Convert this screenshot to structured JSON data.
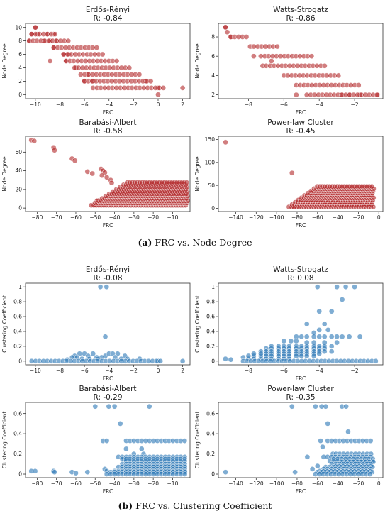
{
  "captions": {
    "a_label": "(a)",
    "a_text": "FRC vs. Node Degree",
    "b_label": "(b)",
    "b_text": "FRC vs. Clustering Coefficient"
  },
  "colors": {
    "red": "#b2282a",
    "blue": "#2a77b6"
  },
  "chart_data": [
    {
      "type": "scatter",
      "panel": "a",
      "title": "Erdős-Rényi",
      "subtitle": "R: -0.84",
      "xlabel": "FRC",
      "ylabel": "Node Degree",
      "color": "red",
      "xlim": [
        -10.8,
        2.6
      ],
      "ylim": [
        -0.6,
        10.6
      ],
      "xticks": [
        -10,
        -8,
        -6,
        -4,
        -2,
        0,
        2
      ],
      "yticks": [
        0,
        2,
        4,
        6,
        8,
        10
      ],
      "points": [
        [
          -10,
          10
        ],
        [
          -10.3,
          9
        ],
        [
          -9.8,
          9
        ],
        [
          -10.5,
          8
        ],
        [
          -9,
          9
        ],
        [
          -8.5,
          9
        ],
        [
          -9.3,
          8
        ],
        [
          -8.8,
          8
        ],
        [
          -8.3,
          8
        ],
        [
          -8.5,
          7
        ],
        [
          -7.7,
          6
        ],
        [
          -7.3,
          6
        ],
        [
          -8.8,
          5
        ],
        [
          -5.7,
          3
        ],
        [
          -6,
          2
        ],
        [
          -5.3,
          2
        ],
        [
          -7.5,
          5
        ],
        [
          -6.7,
          4
        ],
        [
          -1,
          2
        ],
        [
          0,
          1
        ],
        [
          0,
          0
        ],
        [
          2,
          1
        ]
      ],
      "rows": [
        [
          10,
          -10,
          -10
        ],
        [
          9,
          -10.3,
          -8.3
        ],
        [
          8,
          -10.5,
          -7.3
        ],
        [
          7,
          -8.5,
          -5
        ],
        [
          6,
          -7.7,
          -4.3
        ],
        [
          5,
          -7.5,
          -3.3
        ],
        [
          4,
          -6.8,
          -2.3
        ],
        [
          3,
          -6.3,
          -1.3
        ],
        [
          2,
          -6,
          -0.3
        ],
        [
          1,
          -5.3,
          0.7
        ]
      ]
    },
    {
      "type": "scatter",
      "panel": "a",
      "title": "Watts-Strogatz",
      "subtitle": "R: -0.86",
      "xlabel": "FRC",
      "ylabel": "Node Degree",
      "color": "red",
      "xlim": [
        -9.7,
        -0.4
      ],
      "ylim": [
        1.6,
        9.4
      ],
      "xticks": [
        -8,
        -6,
        -4,
        -2
      ],
      "yticks": [
        2,
        4,
        6,
        8
      ],
      "points": [
        [
          -9.3,
          9
        ],
        [
          -9,
          8
        ],
        [
          -7.7,
          6
        ],
        [
          -7.2,
          5
        ],
        [
          -5.3,
          2
        ],
        [
          -2.7,
          2
        ],
        [
          -2.3,
          2
        ],
        [
          -1.7,
          2
        ],
        [
          -0.7,
          2
        ],
        [
          -9.2,
          8.5
        ],
        [
          -7.9,
          7
        ],
        [
          -6.7,
          5.5
        ]
      ],
      "rows": [
        [
          9,
          -9.3,
          -9.3
        ],
        [
          8,
          -9,
          -8
        ],
        [
          7,
          -7.7,
          -6.3
        ],
        [
          6,
          -7.3,
          -4.3
        ],
        [
          5,
          -7,
          -3.5
        ],
        [
          4,
          -6,
          -2.7
        ],
        [
          3,
          -5.3,
          -1.7
        ],
        [
          2,
          -4.7,
          -0.7
        ]
      ]
    },
    {
      "type": "scatter",
      "panel": "a",
      "title": "Barabási-Albert",
      "subtitle": "R: -0.58",
      "xlabel": "FRC",
      "ylabel": "Node Degree",
      "color": "red",
      "xlim": [
        -86,
        -1
      ],
      "ylim": [
        -3.7,
        77
      ],
      "xticks": [
        -80,
        -70,
        -60,
        -50,
        -40,
        -30,
        -20,
        -10
      ],
      "yticks": [
        0,
        20,
        40,
        60
      ],
      "points": [
        [
          -83,
          73
        ],
        [
          -81.5,
          72
        ],
        [
          -71.5,
          65
        ],
        [
          -71,
          62
        ],
        [
          -62,
          53
        ],
        [
          -60.5,
          51
        ],
        [
          -54,
          39
        ],
        [
          -51.5,
          37
        ],
        [
          -47,
          42
        ],
        [
          -46,
          40
        ],
        [
          -45,
          38
        ],
        [
          -46.5,
          35
        ],
        [
          -44,
          33
        ],
        [
          -42,
          30
        ],
        [
          -41.5,
          27
        ],
        [
          -49,
          8
        ],
        [
          -50,
          4
        ],
        [
          -40,
          16
        ]
      ],
      "triangle": [
        [
          -52,
          3
        ],
        [
          -2,
          3
        ],
        [
          -33,
          28
        ]
      ]
    },
    {
      "type": "scatter",
      "panel": "a",
      "title": "Power-law Cluster",
      "subtitle": "R: -0.45",
      "xlabel": "FRC",
      "ylabel": "Node Degree",
      "color": "red",
      "xlim": [
        -157,
        4
      ],
      "ylim": [
        -7,
        157
      ],
      "xticks": [
        -140,
        -120,
        -100,
        -80,
        -60,
        -40,
        -20,
        0
      ],
      "yticks": [
        0,
        50,
        100,
        150
      ],
      "points": [
        [
          -150,
          144
        ],
        [
          -85,
          77
        ],
        [
          -83,
          4
        ],
        [
          -68,
          25
        ],
        [
          -65,
          20
        ]
      ],
      "triangle": [
        [
          -88,
          3
        ],
        [
          -5,
          3
        ],
        [
          -60,
          48
        ]
      ]
    },
    {
      "type": "scatter",
      "panel": "b",
      "title": "Erdős-Rényi",
      "subtitle": "R: -0.08",
      "xlabel": "FRC",
      "ylabel": "Clustering Coefficient",
      "color": "blue",
      "xlim": [
        -10.8,
        2.6
      ],
      "ylim": [
        -0.05,
        1.05
      ],
      "xticks": [
        -10,
        -8,
        -6,
        -4,
        -2,
        0,
        2
      ],
      "yticks": [
        0,
        0.2,
        0.4,
        0.6,
        0.8,
        1.0
      ],
      "points": [
        [
          -4.7,
          1
        ],
        [
          -4.2,
          1
        ],
        [
          -4.3,
          0.33
        ],
        [
          -6.4,
          0.1
        ],
        [
          -6,
          0.1
        ],
        [
          -5.7,
          0.07
        ],
        [
          -5.3,
          0.1
        ],
        [
          -6.8,
          0.07
        ],
        [
          -4.3,
          0.07
        ],
        [
          -4,
          0.1
        ],
        [
          -3.7,
          0.1
        ],
        [
          -3.3,
          0.1
        ],
        [
          -2.7,
          0.07
        ],
        [
          -7,
          0.05
        ],
        [
          -6.6,
          0.05
        ],
        [
          -5,
          0.05
        ],
        [
          -4.6,
          0.05
        ],
        [
          -3.5,
          0.05
        ],
        [
          -6.2,
          0.03
        ],
        [
          -5.6,
          0.03
        ],
        [
          -4.9,
          0.03
        ],
        [
          -3,
          0.03
        ],
        [
          -2.5,
          0.03
        ],
        [
          -7.4,
          0.02
        ],
        [
          -1.5,
          0.03
        ],
        [
          0,
          0
        ],
        [
          2,
          0
        ]
      ],
      "rows": [
        [
          0,
          -10.3,
          0.5
        ]
      ]
    },
    {
      "type": "scatter",
      "panel": "b",
      "title": "Watts-Strogatz",
      "subtitle": "R: 0.08",
      "xlabel": "FRC",
      "ylabel": "Clustering Coefficient",
      "color": "blue",
      "xlim": [
        -9.7,
        -0.4
      ],
      "ylim": [
        -0.05,
        1.05
      ],
      "xticks": [
        -8,
        -6,
        -4,
        -2
      ],
      "yticks": [
        0,
        0.2,
        0.4,
        0.6,
        0.8,
        1.0
      ],
      "points": [
        [
          -4.1,
          1
        ],
        [
          -3,
          1
        ],
        [
          -2.5,
          1
        ],
        [
          -2,
          1
        ],
        [
          -2.7,
          0.83
        ],
        [
          -4,
          0.67
        ],
        [
          -3.3,
          0.67
        ],
        [
          -4.7,
          0.5
        ],
        [
          -3.7,
          0.5
        ],
        [
          -9.3,
          0.03
        ],
        [
          -9,
          0.02
        ],
        [
          -8.3,
          0.05
        ],
        [
          -8,
          0.03
        ],
        [
          -7.7,
          0.07
        ],
        [
          -7.3,
          0.07
        ],
        [
          -4,
          0.42
        ],
        [
          -3.5,
          0.42
        ],
        [
          -4.3,
          0.38
        ],
        [
          -5.3,
          0.33
        ],
        [
          -5,
          0.33
        ],
        [
          -4.7,
          0.33
        ],
        [
          -4.3,
          0.33
        ],
        [
          -4,
          0.33
        ],
        [
          -3.7,
          0.33
        ],
        [
          -3.3,
          0.33
        ],
        [
          -3,
          0.33
        ],
        [
          -2.7,
          0.33
        ],
        [
          -2.3,
          0.33
        ],
        [
          -1.7,
          0.33
        ],
        [
          -6,
          0.27
        ],
        [
          -5.6,
          0.27
        ],
        [
          -5.3,
          0.27
        ],
        [
          -4.7,
          0.25
        ],
        [
          -4.3,
          0.25
        ],
        [
          -3.7,
          0.25
        ],
        [
          -3,
          0.25
        ],
        [
          -6.7,
          0.2
        ],
        [
          -6.3,
          0.2
        ],
        [
          -6,
          0.2
        ],
        [
          -5.7,
          0.2
        ],
        [
          -5.3,
          0.2
        ],
        [
          -5,
          0.2
        ],
        [
          -4.7,
          0.2
        ],
        [
          -4.3,
          0.2
        ],
        [
          -4,
          0.2
        ],
        [
          -3.7,
          0.2
        ],
        [
          -3.3,
          0.2
        ],
        [
          -7,
          0.17
        ],
        [
          -6.7,
          0.17
        ],
        [
          -6.3,
          0.17
        ],
        [
          -6,
          0.17
        ],
        [
          -5.7,
          0.17
        ],
        [
          -5.3,
          0.17
        ],
        [
          -5,
          0.17
        ],
        [
          -4.7,
          0.17
        ],
        [
          -4.3,
          0.17
        ],
        [
          -4,
          0.17
        ],
        [
          -3.7,
          0.17
        ],
        [
          -7.3,
          0.13
        ],
        [
          -7,
          0.13
        ],
        [
          -6.7,
          0.13
        ],
        [
          -6.3,
          0.13
        ],
        [
          -6,
          0.13
        ],
        [
          -5.7,
          0.13
        ],
        [
          -5.3,
          0.13
        ],
        [
          -5,
          0.13
        ],
        [
          -4.7,
          0.13
        ],
        [
          -4.3,
          0.13
        ],
        [
          -4,
          0.13
        ],
        [
          -3.7,
          0.13
        ],
        [
          -3.3,
          0.13
        ],
        [
          -7.7,
          0.1
        ],
        [
          -7.3,
          0.1
        ],
        [
          -7,
          0.1
        ],
        [
          -6.7,
          0.1
        ],
        [
          -6.3,
          0.1
        ],
        [
          -6,
          0.1
        ],
        [
          -5.7,
          0.1
        ],
        [
          -5.3,
          0.1
        ],
        [
          -5,
          0.1
        ],
        [
          -4.7,
          0.1
        ],
        [
          -4.3,
          0.1
        ],
        [
          -4,
          0.1
        ],
        [
          -8,
          0.07
        ],
        [
          -7,
          0.07
        ],
        [
          -6.7,
          0.07
        ],
        [
          -6.3,
          0.07
        ],
        [
          -6,
          0.07
        ],
        [
          -5.7,
          0.07
        ],
        [
          -5.3,
          0.07
        ],
        [
          -5,
          0.07
        ],
        [
          -4.7,
          0.07
        ],
        [
          -4.3,
          0.07
        ],
        [
          -7.7,
          0.03
        ],
        [
          -7.3,
          0.03
        ],
        [
          -7,
          0.03
        ],
        [
          -6.7,
          0.03
        ],
        [
          -6.3,
          0.03
        ],
        [
          -6,
          0.03
        ],
        [
          -5.7,
          0.03
        ]
      ],
      "rows": [
        [
          0,
          -8.3,
          -0.7
        ]
      ]
    },
    {
      "type": "scatter",
      "panel": "b",
      "title": "Barabási-Albert",
      "subtitle": "R: -0.29",
      "xlabel": "FRC",
      "ylabel": "Clustering Coefficient",
      "color": "blue",
      "xlim": [
        -86,
        -1
      ],
      "ylim": [
        -0.035,
        0.71
      ],
      "xticks": [
        -80,
        -70,
        -60,
        -50,
        -40,
        -30,
        -20,
        -10
      ],
      "yticks": [
        0,
        0.2,
        0.4,
        0.6
      ],
      "points": [
        [
          -83,
          0.03
        ],
        [
          -81,
          0.03
        ],
        [
          -71.5,
          0.03
        ],
        [
          -71,
          0.02
        ],
        [
          -62,
          0.02
        ],
        [
          -60,
          0.01
        ],
        [
          -54,
          0.02
        ],
        [
          -50,
          0.67
        ],
        [
          -43,
          0.67
        ],
        [
          -40,
          0.67
        ],
        [
          -22,
          0.67
        ],
        [
          -46,
          0.33
        ],
        [
          -44,
          0.33
        ],
        [
          -37,
          0.5
        ],
        [
          -45,
          0.05
        ],
        [
          -44,
          0.03
        ],
        [
          -34,
          0.25
        ],
        [
          -26,
          0.25
        ],
        [
          -38,
          0.17
        ],
        [
          -35,
          0.15
        ],
        [
          -30,
          0.2
        ],
        [
          -25,
          0.2
        ]
      ],
      "rows": [
        [
          0.33,
          -34,
          -2
        ],
        [
          0.17,
          -36,
          -3
        ],
        [
          0.15,
          -36,
          -3
        ],
        [
          0.13,
          -34,
          -3
        ],
        [
          0.1,
          -36,
          -3
        ],
        [
          0.08,
          -36,
          -3
        ],
        [
          0.07,
          -38,
          -3
        ],
        [
          0.05,
          -36,
          -3
        ],
        [
          0.03,
          -40,
          -3
        ],
        [
          0.02,
          -42,
          -3
        ],
        [
          0,
          -44,
          -3
        ]
      ]
    },
    {
      "type": "scatter",
      "panel": "b",
      "title": "Power-law Cluster",
      "subtitle": "R: -0.35",
      "xlabel": "FRC",
      "ylabel": "Clustering Coefficient",
      "color": "blue",
      "xlim": [
        -157,
        4
      ],
      "ylim": [
        -0.035,
        0.71
      ],
      "xticks": [
        -140,
        -120,
        -100,
        -80,
        -60,
        -40,
        -20,
        0
      ],
      "yticks": [
        0,
        0.2,
        0.4,
        0.6
      ],
      "points": [
        [
          -150,
          0.02
        ],
        [
          -85,
          0.67
        ],
        [
          -62,
          0.67
        ],
        [
          -56,
          0.67
        ],
        [
          -52,
          0.67
        ],
        [
          -36,
          0.67
        ],
        [
          -32,
          0.67
        ],
        [
          -50,
          0.5
        ],
        [
          -57,
          0.33
        ],
        [
          -30,
          0.42
        ],
        [
          -70,
          0.17
        ],
        [
          -60,
          0.08
        ],
        [
          -65,
          0.05
        ],
        [
          -82,
          0.02
        ],
        [
          -55,
          0.27
        ],
        [
          -45,
          0.2
        ]
      ],
      "rows": [
        [
          0.33,
          -50,
          -5
        ],
        [
          0.2,
          -42,
          -5
        ],
        [
          0.17,
          -54,
          -5
        ],
        [
          0.15,
          -44,
          -5
        ],
        [
          0.13,
          -48,
          -5
        ],
        [
          0.12,
          -36,
          -5
        ],
        [
          0.1,
          -46,
          -5
        ],
        [
          0.08,
          -42,
          -5
        ],
        [
          0.07,
          -52,
          -5
        ],
        [
          0.05,
          -54,
          -5
        ],
        [
          0.03,
          -58,
          -5
        ],
        [
          0.02,
          -60,
          -5
        ],
        [
          0,
          -62,
          -5
        ]
      ]
    }
  ]
}
